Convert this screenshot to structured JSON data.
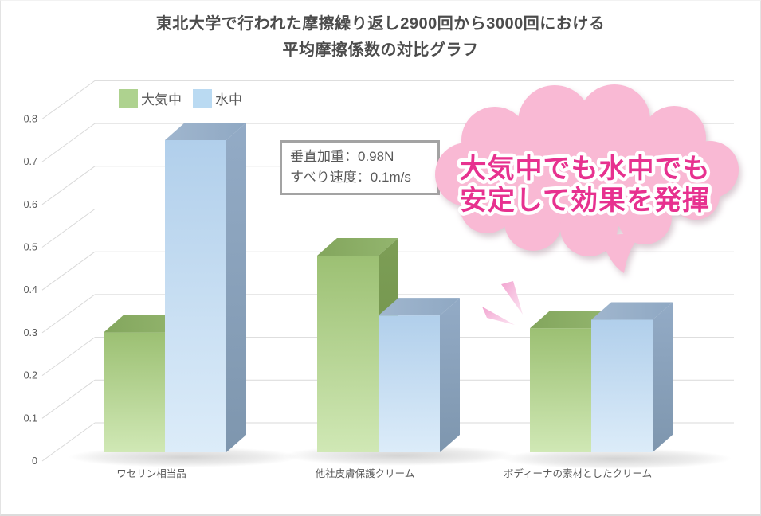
{
  "title": {
    "line1": "東北大学で行われた摩擦繰り返し2900回から3000回における",
    "line2": "平均摩擦係数の対比グラフ"
  },
  "legend": {
    "items": [
      {
        "label": "大気中",
        "color": "#aed28f"
      },
      {
        "label": "水中",
        "color": "#badaf2"
      }
    ]
  },
  "info_box": {
    "line1": "垂直加重：0.98N",
    "line2": "すべり速度：0.1m/s"
  },
  "callout": {
    "line1": "大気中でも水中でも",
    "line2": "安定して効果を発揮",
    "bubble_fill": "#f9b9d4",
    "text_color": "#e7318f"
  },
  "chart_data": {
    "type": "bar",
    "style": "3d-column",
    "title": "東北大学で行われた摩擦繰り返し2900回から3000回における平均摩擦係数の対比グラフ",
    "categories": [
      "ワセリン相当品",
      "他社皮膚保護クリーム",
      "ボディーナの素材としたクリーム"
    ],
    "series": [
      {
        "name": "大気中",
        "color": "#aed28f",
        "values": [
          0.28,
          0.46,
          0.29
        ]
      },
      {
        "name": "水中",
        "color": "#badaf2",
        "values": [
          0.73,
          0.32,
          0.31
        ]
      }
    ],
    "ylabel": "",
    "xlabel": "",
    "ylim": [
      0,
      0.8
    ],
    "y_ticks": [
      "0",
      "0.1",
      "0.2",
      "0.3",
      "0.4",
      "0.5",
      "0.6",
      "0.7",
      "0.8"
    ],
    "grid": true,
    "legend_position": "top-left"
  }
}
